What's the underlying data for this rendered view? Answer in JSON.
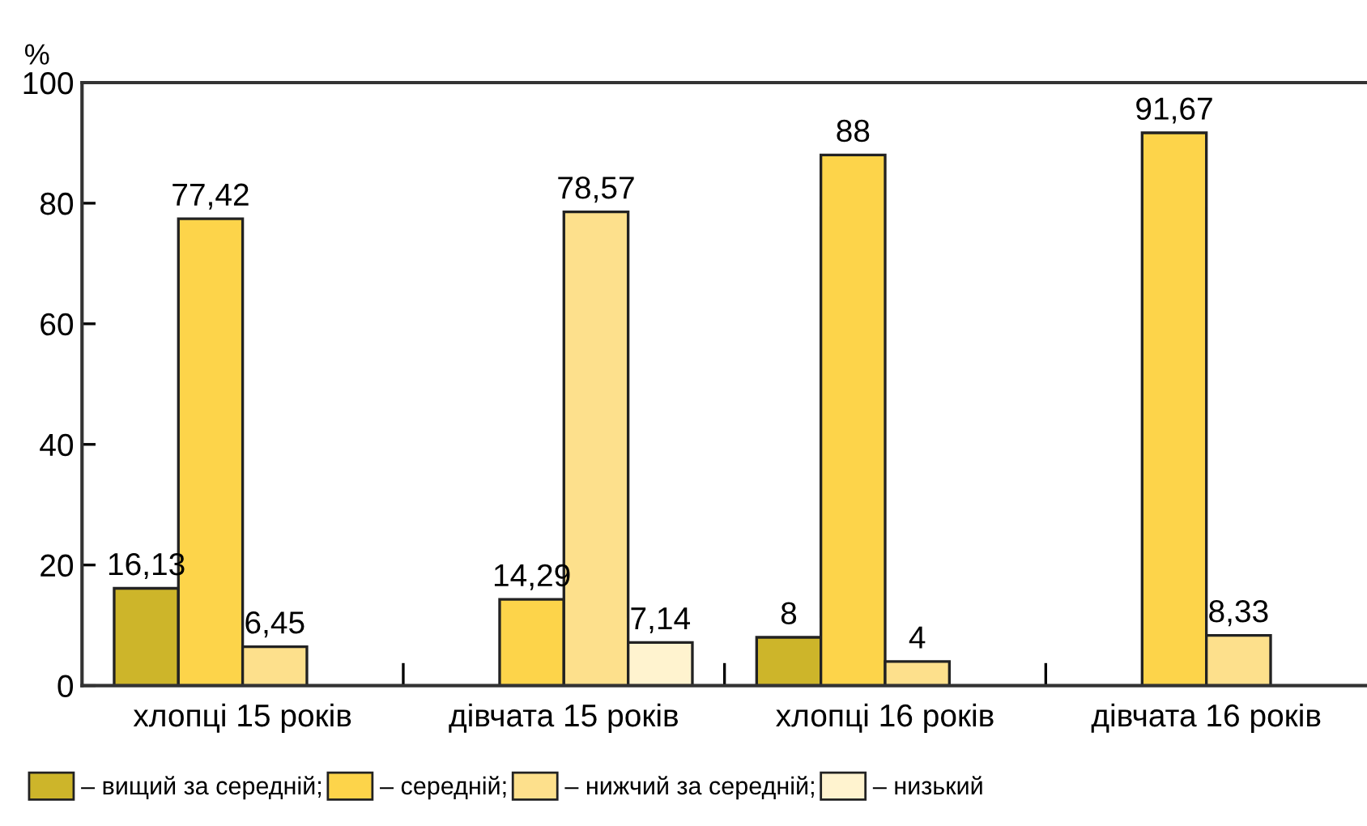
{
  "chart_data": {
    "type": "bar",
    "ylabel": "%",
    "categories": [
      "хлопці 15 років",
      "дівчата 15 років",
      "хлопці 16 років",
      "дівчата 16 років"
    ],
    "series": [
      {
        "name": "– вищий за середній;",
        "color": "#cdb52a",
        "values": [
          16.13,
          null,
          8,
          null
        ],
        "value_labels": [
          "16,13",
          null,
          "8",
          null
        ]
      },
      {
        "name": "– середній;",
        "color": "#fdd44a",
        "values": [
          77.42,
          14.29,
          88,
          91.67
        ],
        "value_labels": [
          "77,42",
          "14,29",
          "88",
          "91,67"
        ]
      },
      {
        "name": "– нижчий за середній;",
        "color": "#fde08c",
        "values": [
          6.45,
          78.57,
          4,
          8.33
        ],
        "value_labels": [
          "6,45",
          "78,57",
          "4",
          "8,33"
        ]
      },
      {
        "name": "– низький",
        "color": "#fff3cf",
        "values": [
          null,
          7.14,
          null,
          null
        ],
        "value_labels": [
          null,
          "7,14",
          null,
          null
        ]
      }
    ],
    "ylim": [
      0,
      100
    ],
    "yticks": [
      0,
      20,
      40,
      60,
      80,
      100
    ],
    "grid": false,
    "legend": "bottom"
  }
}
